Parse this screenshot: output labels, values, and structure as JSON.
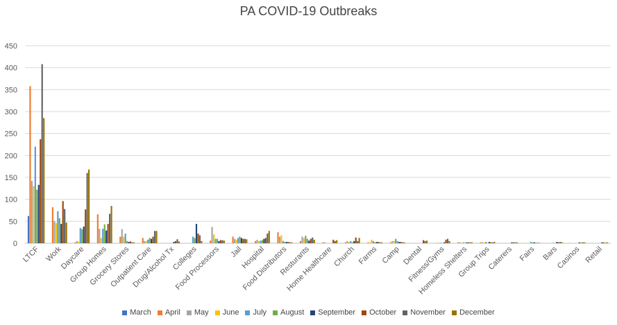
{
  "chart_data": {
    "type": "bar",
    "title": "PA COVID-19 Outbreaks",
    "xlabel": "",
    "ylabel": "",
    "ylim": [
      0,
      450
    ],
    "yticks": [
      "0",
      "50",
      "100",
      "150",
      "200",
      "250",
      "300",
      "350",
      "400",
      "450"
    ],
    "grid": true,
    "legend_position": "bottom",
    "categories": [
      "LTCF",
      "Work",
      "Daycare",
      "Group Homes",
      "Grocery Stores",
      "Outpatient Care",
      "Drug/Alcohol Tx",
      "Colleges",
      "Food Processors",
      "Jail",
      "Hospital",
      "Food Distributors",
      "Resturants",
      "Home Healthcare",
      "Church",
      "Farms",
      "Camp",
      "Dental",
      "Fitness/Gyms",
      "Homeless Shelters",
      "Group Trips",
      "Caterers",
      "Fairs",
      "Bars",
      "Casinos",
      "Retail"
    ],
    "series": [
      {
        "name": "March",
        "color": "#4472C4",
        "values": [
          62,
          0,
          0,
          0,
          0,
          0,
          0,
          0,
          0,
          0,
          0,
          0,
          0,
          0,
          0,
          0,
          0,
          0,
          0,
          0,
          0,
          0,
          0,
          0,
          0,
          0
        ]
      },
      {
        "name": "April",
        "color": "#ED7D31",
        "values": [
          358,
          82,
          2,
          66,
          15,
          12,
          0,
          0,
          6,
          15,
          5,
          25,
          5,
          2,
          2,
          2,
          2,
          0,
          0,
          2,
          2,
          0,
          0,
          0,
          0,
          0
        ]
      },
      {
        "name": "May",
        "color": "#A5A5A5",
        "values": [
          142,
          51,
          5,
          33,
          32,
          5,
          0,
          0,
          37,
          10,
          8,
          15,
          15,
          2,
          5,
          1,
          5,
          0,
          1,
          2,
          2,
          0,
          0,
          0,
          0,
          0
        ]
      },
      {
        "name": "June",
        "color": "#FFC000",
        "values": [
          130,
          46,
          3,
          12,
          15,
          5,
          0,
          0,
          20,
          8,
          5,
          18,
          12,
          0,
          3,
          8,
          5,
          0,
          1,
          1,
          2,
          0,
          1,
          0,
          0,
          0
        ]
      },
      {
        "name": "July",
        "color": "#5B9BD5",
        "values": [
          220,
          73,
          35,
          33,
          22,
          8,
          0,
          15,
          10,
          12,
          6,
          5,
          17,
          0,
          5,
          5,
          10,
          0,
          1,
          2,
          3,
          0,
          3,
          1,
          0,
          0
        ]
      },
      {
        "name": "August",
        "color": "#70AD47",
        "values": [
          122,
          57,
          32,
          43,
          5,
          12,
          0,
          12,
          10,
          15,
          7,
          3,
          10,
          0,
          2,
          2,
          5,
          0,
          0,
          1,
          1,
          0,
          2,
          0,
          0,
          0
        ]
      },
      {
        "name": "September",
        "color": "#264478",
        "values": [
          133,
          44,
          38,
          29,
          3,
          10,
          3,
          44,
          5,
          12,
          10,
          3,
          6,
          0,
          5,
          3,
          3,
          0,
          2,
          2,
          3,
          2,
          2,
          3,
          2,
          2
        ]
      },
      {
        "name": "October",
        "color": "#9E480E",
        "values": [
          237,
          96,
          77,
          44,
          4,
          15,
          5,
          22,
          7,
          10,
          12,
          3,
          10,
          8,
          13,
          3,
          3,
          7,
          8,
          2,
          2,
          2,
          1,
          2,
          1,
          2
        ]
      },
      {
        "name": "November",
        "color": "#636363",
        "values": [
          408,
          78,
          160,
          67,
          2,
          28,
          9,
          18,
          7,
          10,
          22,
          2,
          13,
          5,
          5,
          2,
          2,
          5,
          10,
          2,
          2,
          2,
          1,
          3,
          2,
          1
        ]
      },
      {
        "name": "December",
        "color": "#997300",
        "values": [
          285,
          47,
          168,
          85,
          2,
          28,
          4,
          5,
          6,
          9,
          28,
          2,
          8,
          7,
          12,
          2,
          2,
          6,
          5,
          2,
          3,
          2,
          1,
          2,
          2,
          2
        ]
      }
    ]
  }
}
